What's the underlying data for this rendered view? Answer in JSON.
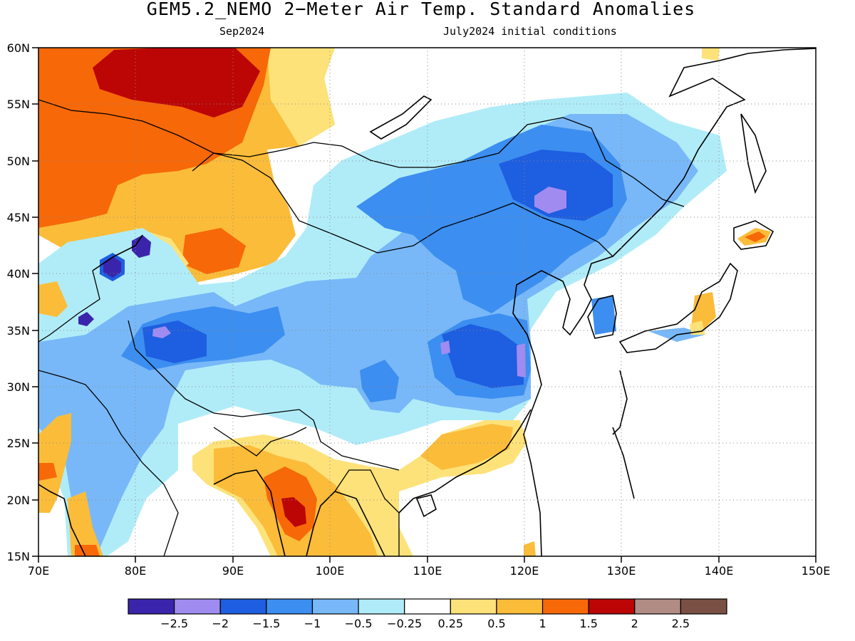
{
  "header": {
    "title": "GEM5.2_NEMO 2−Meter Air Temp. Standard Anomalies",
    "valid_month": "Sep2024",
    "init_conditions": "July2024 initial conditions"
  },
  "map": {
    "lon_range": [
      70,
      150
    ],
    "lat_range": [
      15,
      60
    ],
    "lon_ticks": [
      "70E",
      "80E",
      "90E",
      "100E",
      "110E",
      "120E",
      "130E",
      "140E",
      "150E"
    ],
    "lat_ticks": [
      "60N",
      "55N",
      "50N",
      "45N",
      "40N",
      "35N",
      "30N",
      "25N",
      "20N",
      "15N"
    ],
    "anomaly_regions": [
      {
        "name": "Siberia / Kazakhstan warm",
        "anomaly_class": "1 to 2"
      },
      {
        "name": "Mongolia / NE China cold",
        "anomaly_class": "-2 to -1"
      },
      {
        "name": "Tibetan Plateau cold",
        "anomaly_class": "-2 to -1"
      },
      {
        "name": "Myanmar / Indochina warm",
        "anomaly_class": "0.5 to 2"
      },
      {
        "name": "South China warm",
        "anomaly_class": "0.5 to 1.5"
      }
    ]
  },
  "legend": {
    "colors": [
      "#3b24ac",
      "#a08cf0",
      "#1e5ee0",
      "#3c8ef0",
      "#78b8f8",
      "#b0ecf8",
      "#ffffff",
      "#fde27a",
      "#fbbc3a",
      "#f76808",
      "#bc0606",
      "#b08c84",
      "#7a5044"
    ],
    "labels": [
      "−2.5",
      "−2",
      "−1.5",
      "−1",
      "−0.5",
      "−0.25",
      "0.25",
      "0.5",
      "1",
      "1.5",
      "2",
      "2.5"
    ]
  }
}
